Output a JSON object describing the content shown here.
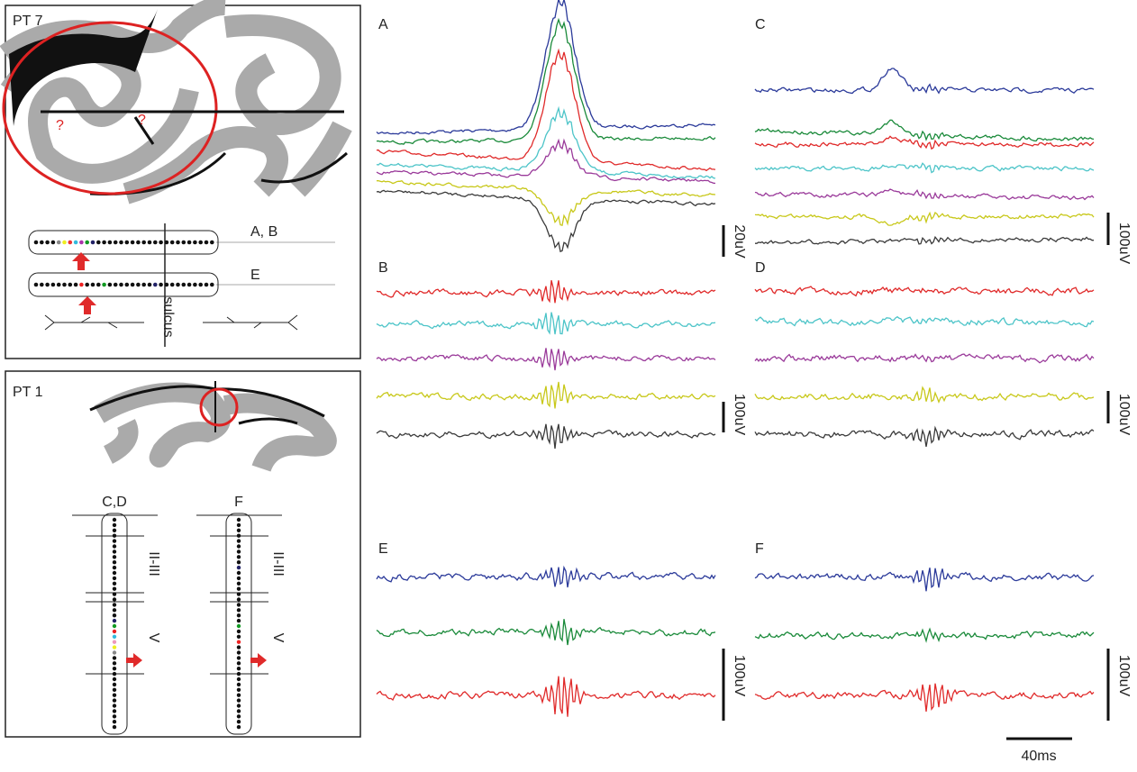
{
  "pt7": {
    "label": "PT 7",
    "marker": "?",
    "rows": [
      "A, B",
      "E"
    ],
    "sulcus": "sulcus"
  },
  "pt1": {
    "label": "PT 1",
    "columns": [
      "C,D",
      "F"
    ],
    "layers": [
      "II-III",
      "V"
    ]
  },
  "panels": {
    "a": "A",
    "b": "B",
    "c": "C",
    "d": "D",
    "e": "E",
    "f": "F"
  },
  "scale_bars": {
    "a": "20uV",
    "b": "100uV",
    "c": "100uV",
    "d": "100uV",
    "e": "100uV",
    "f": "100uV",
    "time": "40ms"
  }
}
